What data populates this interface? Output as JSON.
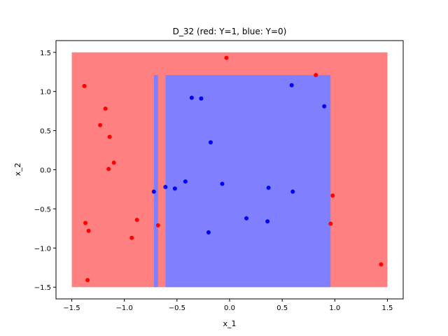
{
  "chart_data": {
    "type": "scatter",
    "title": "D_32 (red: Y=1, blue: Y=0)",
    "xlabel": "x_1",
    "ylabel": "x_2",
    "xlim": [
      -1.65,
      1.65
    ],
    "ylim": [
      -1.65,
      1.65
    ],
    "xticks": [
      -1.5,
      -1.0,
      -0.5,
      0.0,
      0.5,
      1.0,
      1.5
    ],
    "yticks": [
      -1.5,
      -1.0,
      -0.5,
      0.0,
      0.5,
      1.0,
      1.5
    ],
    "xtick_labels": [
      "−1.5",
      "−1.0",
      "−0.5",
      "0.0",
      "0.5",
      "1.0",
      "1.5"
    ],
    "ytick_labels": [
      "−1.5",
      "−1.0",
      "−0.5",
      "0.0",
      "0.5",
      "1.0",
      "1.5"
    ],
    "grid": false,
    "colors": {
      "region_red": "#ff8080",
      "region_blue": "#8080ff",
      "point_red": "#ff0000",
      "point_blue": "#0000ff"
    },
    "regions": [
      {
        "class": "red",
        "x": [
          -1.5,
          1.5
        ],
        "y": [
          -1.5,
          1.5
        ]
      },
      {
        "class": "blue",
        "x": [
          -0.72,
          -0.68
        ],
        "y": [
          -1.5,
          1.21
        ]
      },
      {
        "class": "blue",
        "x": [
          -0.61,
          0.96
        ],
        "y": [
          -1.5,
          1.21
        ]
      }
    ],
    "series": [
      {
        "class": "red",
        "points": [
          [
            -1.38,
            1.07
          ],
          [
            -1.18,
            0.78
          ],
          [
            -1.23,
            0.57
          ],
          [
            -1.14,
            0.42
          ],
          [
            -1.1,
            0.09
          ],
          [
            -1.15,
            0.01
          ],
          [
            -0.03,
            1.43
          ],
          [
            0.82,
            1.21
          ],
          [
            -1.37,
            -0.68
          ],
          [
            -1.34,
            -0.78
          ],
          [
            -0.88,
            -0.64
          ],
          [
            -0.93,
            -0.87
          ],
          [
            -0.68,
            -0.71
          ],
          [
            -1.35,
            -1.41
          ],
          [
            0.98,
            -0.33
          ],
          [
            0.96,
            -0.69
          ],
          [
            1.44,
            -1.21
          ]
        ]
      },
      {
        "class": "blue",
        "points": [
          [
            -0.36,
            0.92
          ],
          [
            -0.27,
            0.91
          ],
          [
            -0.18,
            0.35
          ],
          [
            0.59,
            1.08
          ],
          [
            0.9,
            0.81
          ],
          [
            -0.72,
            -0.28
          ],
          [
            -0.61,
            -0.22
          ],
          [
            -0.52,
            -0.24
          ],
          [
            -0.42,
            -0.15
          ],
          [
            -0.07,
            -0.18
          ],
          [
            0.37,
            -0.23
          ],
          [
            0.6,
            -0.28
          ],
          [
            -0.2,
            -0.8
          ],
          [
            0.16,
            -0.62
          ],
          [
            0.36,
            -0.66
          ]
        ]
      }
    ]
  }
}
